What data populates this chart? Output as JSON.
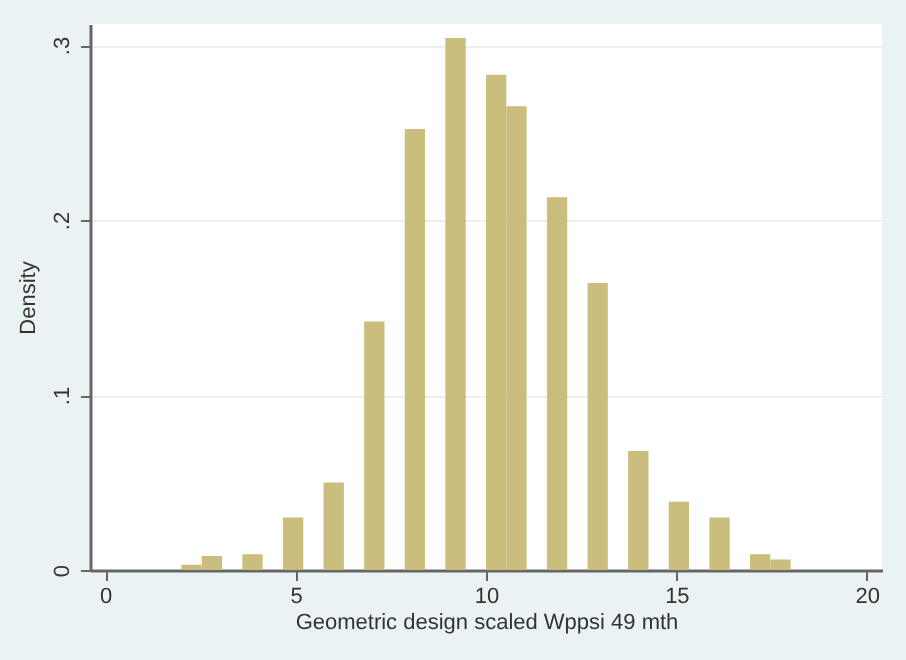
{
  "chart_data": {
    "type": "histogram",
    "xlabel": "Geometric design scaled Wppsi 49 mth",
    "ylabel": "Density",
    "bins": [
      2,
      2.533,
      3.067,
      3.6,
      4.133,
      4.667,
      5.2,
      5.733,
      6.267,
      6.8,
      7.333,
      7.867,
      8.4,
      8.933,
      9.467,
      10,
      10.533,
      11.067,
      11.6,
      12.133,
      12.667,
      13.2,
      13.733,
      14.267,
      14.8,
      15.333,
      15.867,
      16.4,
      16.933,
      17.467,
      18
    ],
    "values": [
      0.003,
      0.008,
      0,
      0.009,
      0,
      0.03,
      0,
      0.05,
      0,
      0.142,
      0,
      0.252,
      0,
      0.304,
      0,
      0.283,
      0.265,
      0,
      0.213,
      0,
      0.164,
      0,
      0.068,
      0,
      0.039,
      0,
      0.03,
      0,
      0.009,
      0.006
    ],
    "color": "#cbbd7e",
    "xlim": [
      -0.4,
      20.4
    ],
    "xticks": [
      0,
      5,
      10,
      15,
      20
    ],
    "ylim": [
      0,
      0.312
    ],
    "yticks": [
      {
        "value": 0,
        "label": "0"
      },
      {
        "value": 0.1,
        "label": ".1"
      },
      {
        "value": 0.2,
        "label": ".2"
      },
      {
        "value": 0.3,
        "label": ".3"
      }
    ],
    "grid": "y"
  }
}
